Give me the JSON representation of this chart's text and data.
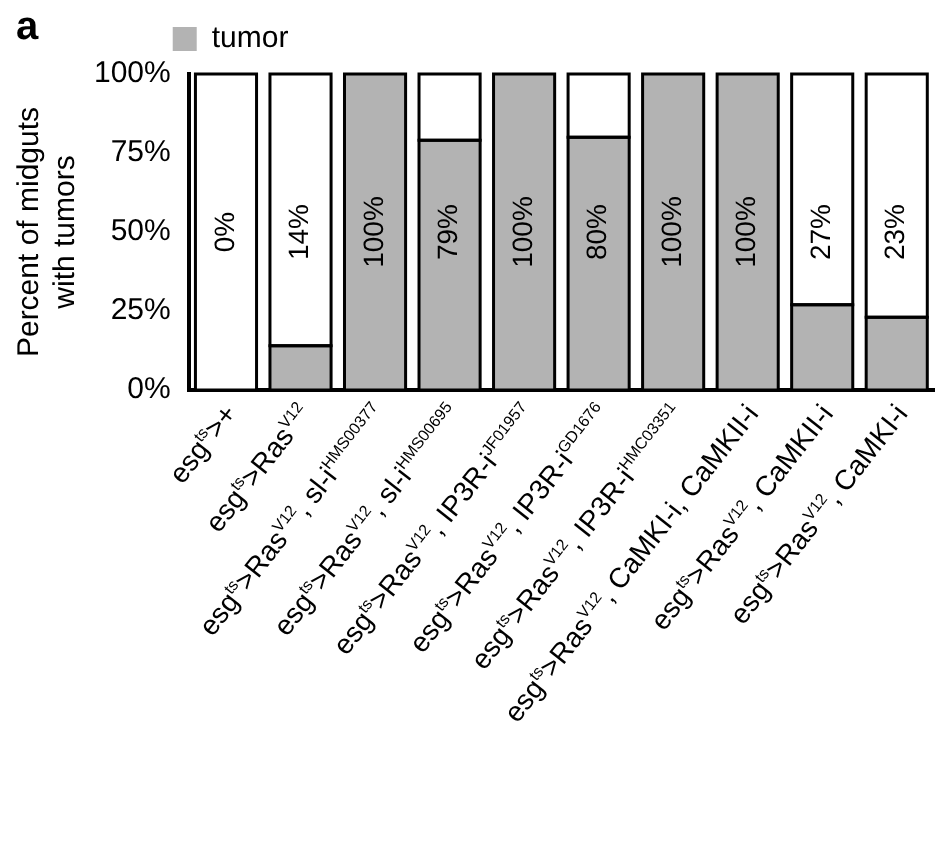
{
  "chart_data": {
    "type": "bar",
    "stacked": true,
    "annotations": [
      "a",
      "0%"
    ],
    "categories": [
      "esg$^{ts}$>+",
      "esg$^{ts}$>Ras$^{V12}$",
      "esg$^{ts}$>Ras$^{V12}$, sl-i$^{HMS00377}$",
      "esg$^{ts}$>Ras$^{V12}$, sl-i$^{HMS00695}$",
      "esg$^{ts}$>Ras$^{V12}$, IP3R-i$^{JF01957}$",
      "esg$^{ts}$>Ras$^{V12}$, IP3R-i$^{GD1676}$",
      "esg$^{ts}$>Ras$^{V12}$, IP3R-i$^{HMC03351}$",
      "esg$^{ts}$>Ras$^{V12}$, CaMKI-i, CaMKII-i",
      "esg$^{ts}$>Ras$^{V12}$, CaMKII-i",
      "esg$^{ts}$>Ras$^{V12}$, CaMKI-i"
    ],
    "series": [
      {
        "name": "tumor",
        "color": "#b3b3b3",
        "values": [
          0,
          14,
          100,
          79,
          100,
          80,
          100,
          100,
          27,
          23
        ],
        "value_labels": [
          null,
          "14%",
          "100%",
          "79%",
          "100%",
          "80%",
          "100%",
          "100%",
          "27%",
          "23%"
        ]
      },
      {
        "color": "#ffffff",
        "values": [
          100,
          86,
          0,
          21,
          0,
          20,
          0,
          0,
          73,
          77
        ]
      }
    ],
    "ylabel": "Percent of midguts\nwith tumors",
    "ylim": [
      0,
      100
    ],
    "yticks": [
      {
        "value": 0,
        "label": "0%"
      },
      {
        "value": 25,
        "label": "25%"
      },
      {
        "value": 50,
        "label": "50%"
      },
      {
        "value": 75,
        "label": "75%"
      },
      {
        "value": 100,
        "label": "100%"
      }
    ],
    "grid": false,
    "legend": "top left"
  }
}
